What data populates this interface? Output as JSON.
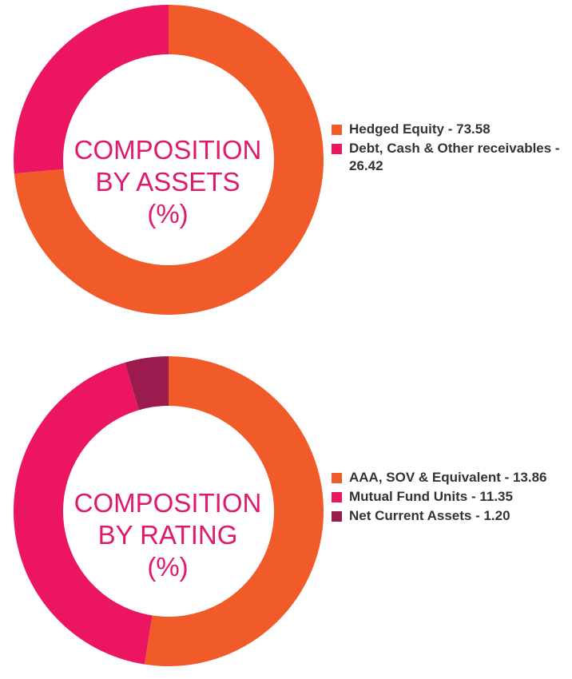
{
  "chart_data": [
    {
      "type": "pie",
      "title_lines": [
        "COMPOSITION",
        "BY ASSETS",
        "(%)"
      ],
      "slices": [
        {
          "label": "Hedged Equity - 73.58",
          "value": 73.58,
          "color": "#f15a29"
        },
        {
          "label": "Debt, Cash & Other receivables - 26.42",
          "value": 26.42,
          "color": "#ec1561"
        }
      ],
      "legend_position": "right"
    },
    {
      "type": "pie",
      "title_lines": [
        "COMPOSITION",
        "BY RATING",
        "(%)"
      ],
      "slices": [
        {
          "label": "AAA, SOV & Equivalent - 13.86",
          "value": 13.86,
          "color": "#f15a29"
        },
        {
          "label": "Mutual Fund Units - 11.35",
          "value": 11.35,
          "color": "#ec1561"
        },
        {
          "label": "Net Current Assets - 1.20",
          "value": 1.2,
          "color": "#9c1b4f"
        }
      ],
      "legend_position": "right"
    }
  ]
}
